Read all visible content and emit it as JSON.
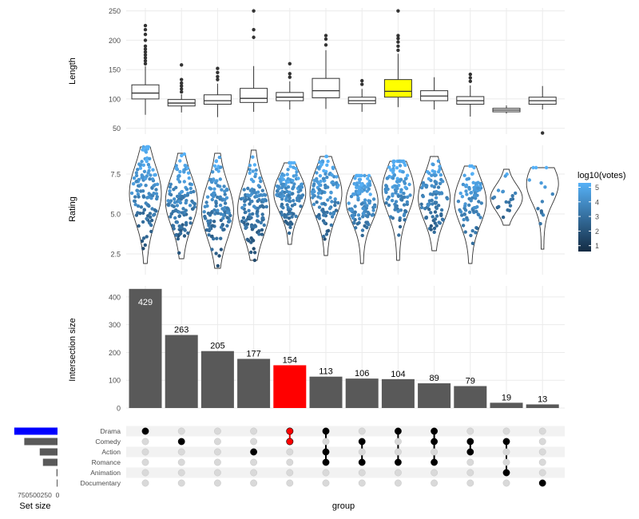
{
  "chart_data": [
    {
      "type": "boxplot",
      "ylabel": "Length",
      "yticks": [
        50,
        100,
        150,
        200,
        250
      ],
      "ylim": [
        40,
        255
      ],
      "highlight_index": 7,
      "highlight_color": "#ffff00",
      "boxes": [
        {
          "q1": 100,
          "median": 110,
          "q3": 124,
          "wl": 73,
          "wh": 156,
          "outliers": [
            160,
            165,
            170,
            175,
            180,
            185,
            190,
            200,
            210,
            218,
            225
          ]
        },
        {
          "q1": 88,
          "median": 93,
          "q3": 99,
          "wl": 77,
          "wh": 108,
          "outliers": [
            112,
            117,
            122,
            127,
            133,
            158
          ]
        },
        {
          "q1": 91,
          "median": 97,
          "q3": 107,
          "wl": 69,
          "wh": 126,
          "outliers": [
            133,
            138,
            145,
            152
          ]
        },
        {
          "q1": 94,
          "median": 101,
          "q3": 118,
          "wl": 78,
          "wh": 156,
          "outliers": [
            205,
            218,
            250
          ]
        },
        {
          "q1": 97,
          "median": 103,
          "q3": 111,
          "wl": 82,
          "wh": 130,
          "outliers": [
            137,
            143,
            160
          ]
        },
        {
          "q1": 102,
          "median": 114,
          "q3": 135,
          "wl": 83,
          "wh": 183,
          "outliers": [
            192,
            202,
            208
          ]
        },
        {
          "q1": 92,
          "median": 97,
          "q3": 103,
          "wl": 78,
          "wh": 117,
          "outliers": [
            125,
            131
          ]
        },
        {
          "q1": 103,
          "median": 113,
          "q3": 133,
          "wl": 86,
          "wh": 177,
          "outliers": [
            183,
            190,
            197,
            203,
            208,
            250
          ]
        },
        {
          "q1": 97,
          "median": 105,
          "q3": 114,
          "wl": 82,
          "wh": 137,
          "outliers": []
        },
        {
          "q1": 91,
          "median": 97,
          "q3": 104,
          "wl": 70,
          "wh": 123,
          "outliers": [
            130,
            136,
            142
          ]
        },
        {
          "q1": 78,
          "median": 81,
          "q3": 84,
          "wl": 75,
          "wh": 89,
          "outliers": []
        },
        {
          "q1": 91,
          "median": 97,
          "q3": 103,
          "wl": 82,
          "wh": 122,
          "outliers": [
            42
          ]
        }
      ]
    },
    {
      "type": "violin",
      "ylabel": "Rating",
      "yticks": [
        2.5,
        5.0,
        7.5
      ],
      "ytick_labels": [
        "2.5",
        "5.0",
        "7.5"
      ],
      "ylim": [
        1.2,
        9.3
      ],
      "colorbar": {
        "title": "log10(votes)",
        "ticks": [
          1,
          2,
          3,
          4,
          5
        ],
        "low_color": "#132b43",
        "high_color": "#56b1f7"
      },
      "violins": [
        {
          "min": 1.9,
          "max": 9.2,
          "center": 6.3,
          "count": 429
        },
        {
          "min": 2.2,
          "max": 8.8,
          "center": 5.8,
          "count": 263
        },
        {
          "min": 1.6,
          "max": 8.8,
          "center": 5.2,
          "count": 205
        },
        {
          "min": 2.1,
          "max": 9.0,
          "center": 5.3,
          "count": 177
        },
        {
          "min": 3.1,
          "max": 8.2,
          "center": 6.3,
          "count": 154
        },
        {
          "min": 2.4,
          "max": 8.6,
          "center": 6.3,
          "count": 113
        },
        {
          "min": 1.9,
          "max": 7.4,
          "center": 5.8,
          "count": 106
        },
        {
          "min": 2.1,
          "max": 8.3,
          "center": 6.5,
          "count": 104
        },
        {
          "min": 2.7,
          "max": 8.6,
          "center": 6.0,
          "count": 89
        },
        {
          "min": 1.9,
          "max": 8.0,
          "center": 5.8,
          "count": 79
        },
        {
          "min": 4.3,
          "max": 7.8,
          "center": 6.0,
          "count": 19
        },
        {
          "min": 2.8,
          "max": 7.9,
          "center": 6.9,
          "count": 13
        }
      ]
    },
    {
      "type": "bar",
      "ylabel": "Intersection size",
      "xlabel": "group",
      "yticks": [
        0,
        100,
        200,
        300,
        400
      ],
      "ylim": [
        0,
        440
      ],
      "values": [
        429,
        263,
        205,
        177,
        154,
        113,
        106,
        104,
        89,
        79,
        19,
        13
      ],
      "value_labels": [
        "429",
        "263",
        "205",
        "177",
        "154",
        "113",
        "106",
        "104",
        "89",
        "79",
        "19",
        "13"
      ],
      "highlight_index": 4,
      "highlight_color": "#ff0000",
      "bar_color": "#595959"
    },
    {
      "type": "upset_matrix",
      "sets": [
        "Drama",
        "Comedy",
        "Action",
        "Romance",
        "Animation",
        "Documentary"
      ],
      "memberships": [
        [
          "Drama"
        ],
        [
          "Comedy"
        ],
        [],
        [
          "Action"
        ],
        [
          "Drama",
          "Comedy"
        ],
        [
          "Drama",
          "Action",
          "Romance"
        ],
        [
          "Comedy",
          "Romance"
        ],
        [
          "Drama",
          "Romance"
        ],
        [
          "Drama",
          "Comedy",
          "Romance"
        ],
        [
          "Comedy",
          "Action"
        ],
        [
          "Comedy",
          "Animation"
        ],
        [
          "Documentary"
        ]
      ],
      "highlight_index": 4,
      "highlight_color": "#ff0000"
    },
    {
      "type": "bar_horizontal",
      "xlabel": "Set size",
      "xtick_labels": [
        "750",
        "500",
        "250",
        "0"
      ],
      "xticks": [
        750,
        500,
        250,
        0
      ],
      "categories": [
        "Drama",
        "Comedy",
        "Action",
        "Romance",
        "Animation",
        "Documentary"
      ],
      "values": [
        950,
        730,
        390,
        320,
        22,
        15
      ],
      "highlight_index": 0,
      "highlight_color": "#0000ff",
      "bar_color": "#595959"
    }
  ]
}
